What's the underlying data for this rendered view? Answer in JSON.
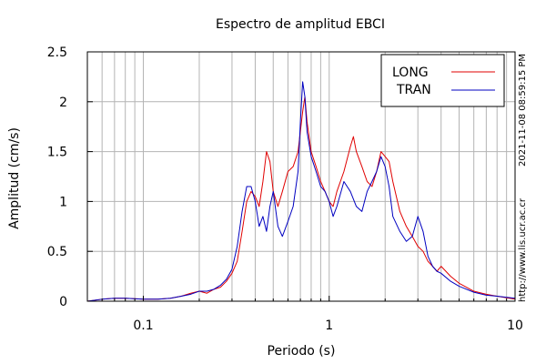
{
  "chart_data": {
    "type": "line",
    "title": "Espectro de amplitud EBCI",
    "xlabel": "Periodo (s)",
    "ylabel": "Amplitud (cm/s)",
    "xscale": "log",
    "xlim": [
      0.05,
      10
    ],
    "ylim": [
      0,
      2.5
    ],
    "xticks": [
      {
        "value": 0.1,
        "label": "0.1"
      },
      {
        "value": 1,
        "label": "1"
      },
      {
        "value": 10,
        "label": "10"
      }
    ],
    "yticks": [
      {
        "value": 0,
        "label": "0"
      },
      {
        "value": 0.5,
        "label": "0.5"
      },
      {
        "value": 1,
        "label": "1"
      },
      {
        "value": 1.5,
        "label": "1.5"
      },
      {
        "value": 2,
        "label": "2"
      },
      {
        "value": 2.5,
        "label": "2.5"
      }
    ],
    "grid": true,
    "legend_position": "top-right",
    "series": [
      {
        "name": "LONG",
        "color": "#e00000",
        "points": [
          [
            0.05,
            0.0
          ],
          [
            0.06,
            0.02
          ],
          [
            0.07,
            0.03
          ],
          [
            0.08,
            0.03
          ],
          [
            0.1,
            0.02
          ],
          [
            0.12,
            0.02
          ],
          [
            0.14,
            0.03
          ],
          [
            0.16,
            0.05
          ],
          [
            0.18,
            0.08
          ],
          [
            0.2,
            0.1
          ],
          [
            0.22,
            0.08
          ],
          [
            0.24,
            0.12
          ],
          [
            0.26,
            0.14
          ],
          [
            0.28,
            0.2
          ],
          [
            0.3,
            0.28
          ],
          [
            0.32,
            0.4
          ],
          [
            0.34,
            0.7
          ],
          [
            0.36,
            1.0
          ],
          [
            0.38,
            1.1
          ],
          [
            0.4,
            1.05
          ],
          [
            0.42,
            0.95
          ],
          [
            0.44,
            1.2
          ],
          [
            0.46,
            1.5
          ],
          [
            0.48,
            1.4
          ],
          [
            0.5,
            1.1
          ],
          [
            0.53,
            0.95
          ],
          [
            0.56,
            1.1
          ],
          [
            0.6,
            1.3
          ],
          [
            0.64,
            1.35
          ],
          [
            0.68,
            1.5
          ],
          [
            0.72,
            1.9
          ],
          [
            0.74,
            2.05
          ],
          [
            0.76,
            1.8
          ],
          [
            0.8,
            1.5
          ],
          [
            0.85,
            1.35
          ],
          [
            0.9,
            1.2
          ],
          [
            0.95,
            1.1
          ],
          [
            1.0,
            1.0
          ],
          [
            1.05,
            0.95
          ],
          [
            1.1,
            1.1
          ],
          [
            1.2,
            1.3
          ],
          [
            1.3,
            1.55
          ],
          [
            1.35,
            1.65
          ],
          [
            1.4,
            1.5
          ],
          [
            1.5,
            1.35
          ],
          [
            1.6,
            1.2
          ],
          [
            1.7,
            1.15
          ],
          [
            1.8,
            1.3
          ],
          [
            1.9,
            1.5
          ],
          [
            2.0,
            1.45
          ],
          [
            2.1,
            1.4
          ],
          [
            2.2,
            1.2
          ],
          [
            2.4,
            0.9
          ],
          [
            2.6,
            0.75
          ],
          [
            2.8,
            0.65
          ],
          [
            3.0,
            0.55
          ],
          [
            3.2,
            0.5
          ],
          [
            3.4,
            0.4
          ],
          [
            3.6,
            0.35
          ],
          [
            3.8,
            0.3
          ],
          [
            4.0,
            0.35
          ],
          [
            4.5,
            0.25
          ],
          [
            5.0,
            0.18
          ],
          [
            6.0,
            0.1
          ],
          [
            7.0,
            0.07
          ],
          [
            8.0,
            0.05
          ],
          [
            10.0,
            0.02
          ]
        ]
      },
      {
        "name": "TRAN",
        "color": "#0000c0",
        "points": [
          [
            0.05,
            0.0
          ],
          [
            0.06,
            0.02
          ],
          [
            0.07,
            0.03
          ],
          [
            0.08,
            0.03
          ],
          [
            0.1,
            0.02
          ],
          [
            0.12,
            0.02
          ],
          [
            0.14,
            0.03
          ],
          [
            0.16,
            0.05
          ],
          [
            0.18,
            0.07
          ],
          [
            0.2,
            0.1
          ],
          [
            0.22,
            0.1
          ],
          [
            0.24,
            0.12
          ],
          [
            0.26,
            0.16
          ],
          [
            0.28,
            0.22
          ],
          [
            0.3,
            0.32
          ],
          [
            0.32,
            0.55
          ],
          [
            0.34,
            0.9
          ],
          [
            0.36,
            1.15
          ],
          [
            0.38,
            1.15
          ],
          [
            0.4,
            1.0
          ],
          [
            0.42,
            0.75
          ],
          [
            0.44,
            0.85
          ],
          [
            0.46,
            0.7
          ],
          [
            0.48,
            0.95
          ],
          [
            0.5,
            1.1
          ],
          [
            0.53,
            0.75
          ],
          [
            0.56,
            0.65
          ],
          [
            0.6,
            0.8
          ],
          [
            0.64,
            0.95
          ],
          [
            0.68,
            1.3
          ],
          [
            0.7,
            1.8
          ],
          [
            0.72,
            2.2
          ],
          [
            0.74,
            2.05
          ],
          [
            0.76,
            1.7
          ],
          [
            0.8,
            1.45
          ],
          [
            0.85,
            1.3
          ],
          [
            0.9,
            1.15
          ],
          [
            0.95,
            1.1
          ],
          [
            1.0,
            1.0
          ],
          [
            1.05,
            0.85
          ],
          [
            1.1,
            0.95
          ],
          [
            1.2,
            1.2
          ],
          [
            1.3,
            1.1
          ],
          [
            1.4,
            0.95
          ],
          [
            1.5,
            0.9
          ],
          [
            1.6,
            1.1
          ],
          [
            1.7,
            1.2
          ],
          [
            1.8,
            1.3
          ],
          [
            1.9,
            1.45
          ],
          [
            2.0,
            1.35
          ],
          [
            2.1,
            1.15
          ],
          [
            2.2,
            0.85
          ],
          [
            2.4,
            0.7
          ],
          [
            2.6,
            0.6
          ],
          [
            2.8,
            0.65
          ],
          [
            3.0,
            0.85
          ],
          [
            3.2,
            0.7
          ],
          [
            3.4,
            0.45
          ],
          [
            3.6,
            0.35
          ],
          [
            3.8,
            0.3
          ],
          [
            4.0,
            0.28
          ],
          [
            4.5,
            0.2
          ],
          [
            5.0,
            0.15
          ],
          [
            6.0,
            0.09
          ],
          [
            7.0,
            0.06
          ],
          [
            8.0,
            0.05
          ],
          [
            10.0,
            0.03
          ]
        ]
      }
    ],
    "side_labels": {
      "timestamp": "2021-11-08 08:59:15 PM",
      "url": "http://www.lis.ucr.ac.cr"
    }
  }
}
